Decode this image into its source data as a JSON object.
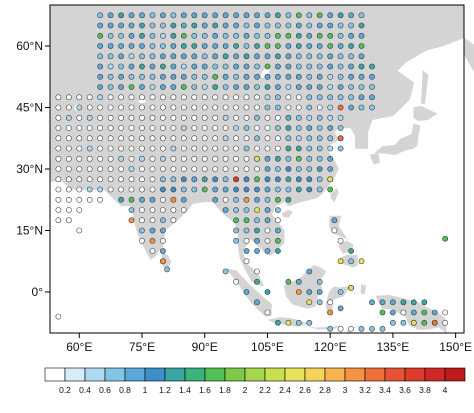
{
  "map": {
    "lon_range": [
      53,
      152
    ],
    "lat_range": [
      -10,
      70
    ],
    "lon_ticks": [
      {
        "value": 60,
        "label": "60°E"
      },
      {
        "value": 75,
        "label": "75°E"
      },
      {
        "value": 90,
        "label": "90°E"
      },
      {
        "value": 105,
        "label": "105°E"
      },
      {
        "value": 120,
        "label": "120°E"
      },
      {
        "value": 135,
        "label": "135°E"
      },
      {
        "value": 150,
        "label": "150°E"
      }
    ],
    "lat_ticks": [
      {
        "value": 60,
        "label": "60°N"
      },
      {
        "value": 45,
        "label": "45°N"
      },
      {
        "value": 30,
        "label": "30°N"
      },
      {
        "value": 15,
        "label": "15°N"
      },
      {
        "value": 0,
        "label": "0°"
      }
    ],
    "land_color": "#d4d4d4",
    "ocean_color": "#ffffff"
  },
  "colorbar": {
    "labels": [
      "0.2",
      "0.4",
      "0.6",
      "0.8",
      "1",
      "1.2",
      "1.4",
      "1.6",
      "1.8",
      "2",
      "2.2",
      "2.4",
      "2.6",
      "2.8",
      "3",
      "3.2",
      "3.4",
      "3.6",
      "3.8",
      "4"
    ],
    "colors": [
      "#ffffff",
      "#d6eef8",
      "#aed9f0",
      "#86c4e6",
      "#5aa9d8",
      "#3c8fc8",
      "#3aa6a2",
      "#38b57a",
      "#52bf57",
      "#7ccb48",
      "#a6d64c",
      "#c9df52",
      "#e6e25a",
      "#f5d25a",
      "#f6b34e",
      "#f39343",
      "#ee713a",
      "#e65233",
      "#dd3a2c",
      "#cf2727",
      "#bd1a1a"
    ]
  }
}
